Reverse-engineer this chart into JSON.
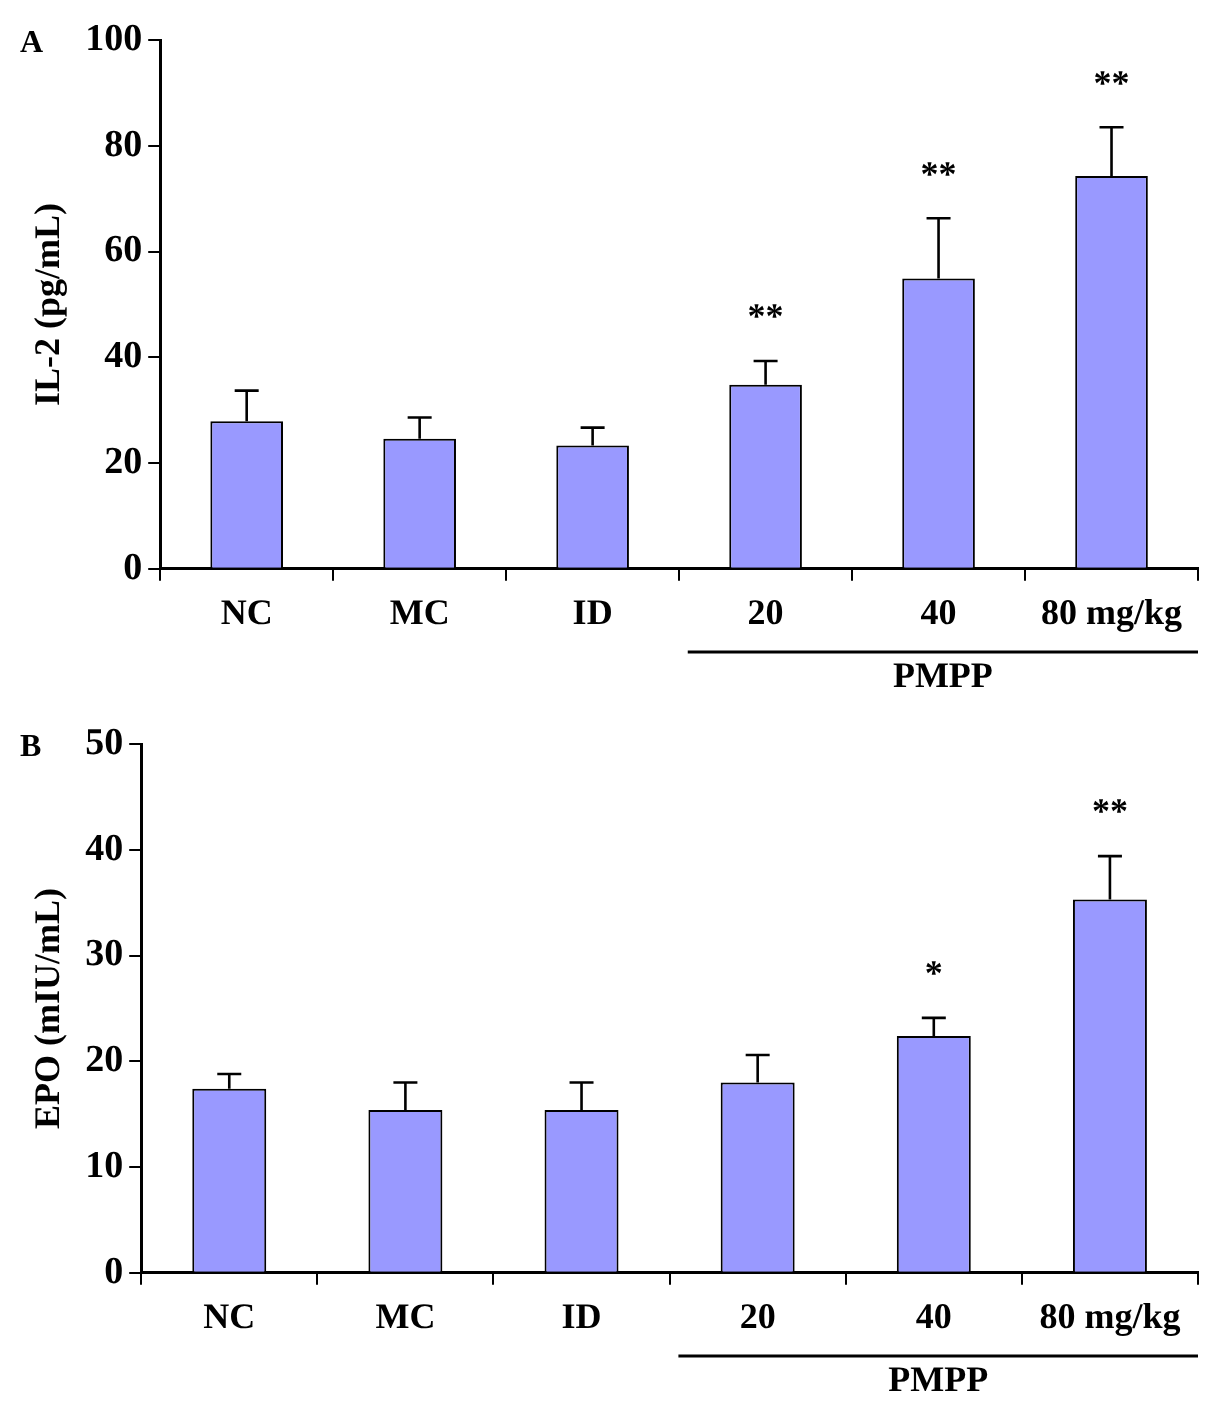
{
  "chart_data": [
    {
      "type": "bar",
      "title": "A",
      "ylabel": "IL-2 (pg/mL)",
      "categories": [
        "NC",
        "MC",
        "ID",
        "20",
        "40",
        "80 mg/kg"
      ],
      "values": [
        27.9,
        24.6,
        23.3,
        34.8,
        54.9,
        74.3
      ],
      "errors": [
        5.8,
        4,
        3.4,
        4.5,
        11.4,
        9.2
      ],
      "color": "#9999ff",
      "ylim": [
        0,
        100
      ],
      "yticks": [
        0,
        20,
        40,
        60,
        80,
        100
      ],
      "grid": false,
      "legend": false,
      "annotations": [
        "PMPP",
        {
          "text": "**",
          "x": "20",
          "y": 39.3
        },
        {
          "text": "**",
          "x": "40",
          "y": 66.3
        },
        {
          "text": "**",
          "x": "80 mg/kg",
          "y": 83.5
        }
      ]
    },
    {
      "type": "bar",
      "title": "B",
      "ylabel": "EPO (mIU/mL)",
      "categories": [
        "NC",
        "MC",
        "ID",
        "20",
        "40",
        "80 mg/kg"
      ],
      "values": [
        17.4,
        15.4,
        15.4,
        18.0,
        22.4,
        35.3
      ],
      "errors": [
        1.4,
        2.6,
        2.6,
        2.6,
        1.7,
        4.1
      ],
      "color": "#9999ff",
      "ylim": [
        0,
        50
      ],
      "yticks": [
        0,
        10,
        20,
        30,
        40,
        50
      ],
      "grid": false,
      "legend": false,
      "annotations": [
        "PMPP",
        {
          "text": "*",
          "x": "40",
          "y": 24.1
        },
        {
          "text": "**",
          "x": "80 mg/kg",
          "y": 39.4
        }
      ]
    }
  ]
}
